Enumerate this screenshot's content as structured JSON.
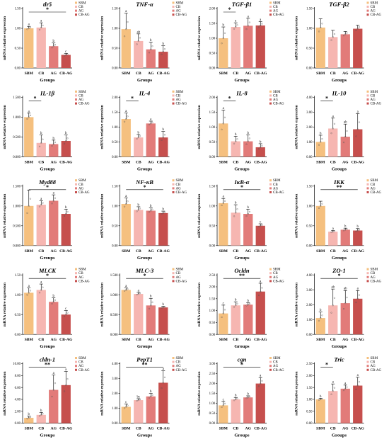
{
  "chart_data": [
    {
      "type": "bar",
      "title": "tlr5",
      "ylabel": "mRNA relative expression",
      "xlabel": "Groups",
      "categories": [
        "SBM",
        "CB",
        "AG",
        "CB-AG"
      ],
      "series": [
        {
          "values": [
            1.0,
            1.02,
            0.55,
            0.33
          ],
          "errors": [
            0.05,
            0.12,
            0.08,
            0.04
          ],
          "letters": [
            "a",
            "a",
            "b",
            "c"
          ]
        }
      ],
      "ylim": [
        0,
        1.5
      ],
      "yticks": [
        "0.00",
        "0.50",
        "1.00",
        "1.50"
      ],
      "legend": [
        "SBM",
        "CB",
        "AG",
        "CB-AG"
      ],
      "sig": {
        "label": "*",
        "from": 0,
        "to": 3
      },
      "grid": false
    },
    {
      "type": "bar",
      "title": "TNF-α",
      "ylabel": "mRNA relative expression",
      "xlabel": "Groups",
      "categories": [
        "SBM",
        "CB",
        "AG",
        "CB-AG"
      ],
      "series": [
        {
          "values": [
            0.98,
            0.68,
            0.47,
            0.41
          ],
          "errors": [
            0.4,
            0.18,
            0.18,
            0.15
          ],
          "letters": [
            "a",
            "ab",
            "b",
            "b"
          ]
        }
      ],
      "ylim": [
        0,
        1.5
      ],
      "yticks": [
        "0.00",
        "0.50",
        "1.00",
        "1.50"
      ],
      "legend": [
        "SBM",
        "CB",
        "AG",
        "CB-AG"
      ],
      "sig": null,
      "grid": false
    },
    {
      "type": "bar",
      "title": "TGF-β1",
      "ylabel": "mRNA relative expression",
      "xlabel": "Groups",
      "categories": [
        "SBM",
        "CB",
        "AG",
        "CB-AG"
      ],
      "series": [
        {
          "values": [
            1.0,
            1.38,
            1.42,
            1.43
          ],
          "errors": [
            0.38,
            0.14,
            0.25,
            0.13
          ],
          "letters": [
            "b",
            "a",
            "a",
            "a"
          ]
        }
      ],
      "ylim": [
        0,
        2.0
      ],
      "yticks": [
        "0.00",
        "0.50",
        "1.00",
        "1.50",
        "2.00"
      ],
      "legend": [
        "SBM",
        "CB",
        "AG",
        "CB-AG"
      ],
      "sig": {
        "label": "*",
        "from": 0,
        "to": 1
      },
      "grid": false
    },
    {
      "type": "bar",
      "title": "TGF-β2",
      "ylabel": "mRNA relative expression",
      "xlabel": "Groups",
      "categories": [
        "SBM",
        "CB",
        "AG",
        "CB-AG"
      ],
      "series": [
        {
          "values": [
            1.02,
            0.78,
            0.85,
            0.99
          ],
          "errors": [
            0.22,
            0.17,
            0.07,
            0.09
          ],
          "letters": [
            "",
            "",
            "",
            ""
          ]
        }
      ],
      "ylim": [
        0,
        1.5
      ],
      "yticks": [
        "0.00",
        "0.50",
        "1.00",
        "1.50"
      ],
      "legend": [
        "SBM",
        "CB",
        "AG",
        "CB-AG"
      ],
      "sig": null,
      "grid": false
    },
    {
      "type": "bar",
      "title": "IL-1β",
      "ylabel": "mRNA relative expression",
      "xlabel": "Groups",
      "categories": [
        "SBM",
        "CB",
        "AG",
        "CB-AG"
      ],
      "series": [
        {
          "values": [
            1.0,
            0.35,
            0.32,
            0.4
          ],
          "errors": [
            0.1,
            0.2,
            0.1,
            0.15
          ],
          "letters": [
            "a",
            "b",
            "b",
            "b"
          ]
        }
      ],
      "ylim": [
        0,
        1.5
      ],
      "yticks": [
        "0.000",
        "0.500",
        "1.000",
        "1.500"
      ],
      "legend": [
        "SBM",
        "CB",
        "AG",
        "CB-AG"
      ],
      "sig": {
        "label": "*",
        "from": 0,
        "to": 1
      },
      "grid": false
    },
    {
      "type": "bar",
      "title": "IL-4",
      "ylabel": "mRNA relative expression",
      "xlabel": "Groups",
      "categories": [
        "SBM",
        "CB",
        "AG",
        "CB-AG"
      ],
      "series": [
        {
          "values": [
            1.27,
            0.65,
            1.12,
            0.65
          ],
          "errors": [
            0.2,
            0.1,
            0.08,
            0.2
          ],
          "letters": [
            "a",
            "b",
            "a",
            "b"
          ]
        }
      ],
      "ylim": [
        0,
        2.0
      ],
      "yticks": [
        "0.00",
        "0.50",
        "1.00",
        "1.50",
        "2.00"
      ],
      "legend": [
        "SBM",
        "CB",
        "AG",
        "CB-AG"
      ],
      "sig": {
        "label": "*",
        "from": 0,
        "to": 1
      },
      "grid": false
    },
    {
      "type": "bar",
      "title": "IL-8",
      "ylabel": "mRNA relative expression",
      "xlabel": "Groups",
      "categories": [
        "SBM",
        "CB",
        "AG",
        "CB-AG"
      ],
      "series": [
        {
          "values": [
            1.12,
            0.52,
            0.52,
            0.32
          ],
          "errors": [
            0.45,
            0.17,
            0.22,
            0.12
          ],
          "letters": [
            "a",
            "b",
            "b",
            "b"
          ]
        }
      ],
      "ylim": [
        0,
        2.0
      ],
      "yticks": [
        "0.00",
        "0.50",
        "1.00",
        "1.50",
        "2.00"
      ],
      "legend": [
        "SBM",
        "CB",
        "AG",
        "CB-AG"
      ],
      "sig": {
        "label": "*",
        "from": 0,
        "to": 1
      },
      "grid": false
    },
    {
      "type": "bar",
      "title": "IL-10",
      "ylabel": "mRNA relative expression",
      "xlabel": "Groups",
      "categories": [
        "SBM",
        "CB",
        "AG",
        "CB-AG"
      ],
      "series": [
        {
          "values": [
            1.0,
            1.9,
            1.35,
            1.85
          ],
          "errors": [
            0.45,
            0.7,
            0.85,
            1.05
          ],
          "letters": [
            "b",
            "a",
            "ab",
            "a"
          ]
        }
      ],
      "ylim": [
        0,
        4.0
      ],
      "yticks": [
        "0.00",
        "1.00",
        "2.00",
        "3.00",
        "4.00"
      ],
      "legend": [
        "SBM",
        "CB",
        "AG",
        "CB-AG"
      ],
      "sig": {
        "label": "*",
        "from": 0,
        "to": 1
      },
      "grid": false
    },
    {
      "type": "bar",
      "title": "Myd88",
      "ylabel": "mRNA relative expression",
      "xlabel": "Groups",
      "categories": [
        "SBM",
        "CB",
        "AG",
        "CB-AG"
      ],
      "series": [
        {
          "values": [
            1.0,
            1.03,
            1.13,
            0.8
          ],
          "errors": [
            0.4,
            0.1,
            0.15,
            0.12
          ],
          "letters": [
            "",
            "a",
            "a",
            "b"
          ]
        }
      ],
      "ylim": [
        0,
        1.5
      ],
      "yticks": [
        "0.000",
        "0.500",
        "1.000",
        "1.500"
      ],
      "legend": [
        "SBM",
        "CB",
        "AG",
        "CB-AG"
      ],
      "sig": {
        "label": "*",
        "from": 0,
        "to": 3
      },
      "grid": false
    },
    {
      "type": "bar",
      "title": "NF-κB",
      "ylabel": "mRNA relative expression",
      "xlabel": "Groups",
      "categories": [
        "SBM",
        "CB",
        "AG",
        "CB-AG"
      ],
      "series": [
        {
          "values": [
            1.05,
            0.9,
            0.88,
            0.82
          ],
          "errors": [
            0.15,
            0.08,
            0.07,
            0.05
          ],
          "letters": [
            "a",
            "b",
            "b",
            "b"
          ]
        }
      ],
      "ylim": [
        0,
        1.5
      ],
      "yticks": [
        "0.00",
        "0.50",
        "1.00",
        "1.50"
      ],
      "legend": [
        "SBM",
        "CB",
        "AG",
        "CB-AG"
      ],
      "sig": {
        "label": "*",
        "from": 0,
        "to": 3
      },
      "grid": false
    },
    {
      "type": "bar",
      "title": "IκB-α",
      "ylabel": "mRNA relative expression",
      "xlabel": "Groups",
      "categories": [
        "SBM",
        "CB",
        "AG",
        "CB-AG"
      ],
      "series": [
        {
          "values": [
            1.07,
            0.83,
            0.8,
            0.5
          ],
          "errors": [
            0.12,
            0.2,
            0.12,
            0.05
          ],
          "letters": [
            "a",
            "b",
            "b",
            "c"
          ]
        }
      ],
      "ylim": [
        0,
        1.5
      ],
      "yticks": [
        "0.00",
        "0.50",
        "1.00",
        "1.50"
      ],
      "legend": [
        "SBM",
        "CB",
        "AG",
        "CB-AG"
      ],
      "sig": {
        "label": "*",
        "from": 0,
        "to": 3
      },
      "grid": false
    },
    {
      "type": "bar",
      "title": "IKK",
      "ylabel": "mRNA relative expression",
      "xlabel": "Groups",
      "categories": [
        "SBM",
        "CB",
        "AG",
        "CB-AG"
      ],
      "series": [
        {
          "values": [
            1.0,
            0.35,
            0.4,
            0.38
          ],
          "errors": [
            0.12,
            0.03,
            0.04,
            0.05
          ],
          "letters": [
            "",
            "a",
            "b",
            "b"
          ]
        }
      ],
      "ylim": [
        0,
        1.5
      ],
      "yticks": [
        "0.00",
        "0.50",
        "1.00",
        "1.50"
      ],
      "legend": [
        "SBM",
        "CB",
        "AG",
        "CB-AG"
      ],
      "sig": {
        "label": "**",
        "from": 0,
        "to": 3
      },
      "grid": false
    },
    {
      "type": "bar",
      "title": "MLCK",
      "ylabel": "mRNA relative expression",
      "xlabel": "Groups",
      "categories": [
        "SBM",
        "CB",
        "AG",
        "CB-AG"
      ],
      "series": [
        {
          "values": [
            1.05,
            1.12,
            0.82,
            0.5
          ],
          "errors": [
            0.12,
            0.15,
            0.1,
            0.1
          ],
          "letters": [
            "a",
            "a",
            "b",
            "c"
          ]
        }
      ],
      "ylim": [
        0,
        1.5
      ],
      "yticks": [
        "0.00",
        "0.50",
        "1.00",
        "1.50"
      ],
      "legend": [
        "SBM",
        "CB",
        "AG",
        "CB-AG"
      ],
      "sig": {
        "label": "*",
        "from": 0,
        "to": 3
      },
      "grid": false
    },
    {
      "type": "bar",
      "title": "MLC-3",
      "ylabel": "mRNA relative expression",
      "xlabel": "Groups",
      "categories": [
        "SBM",
        "CB",
        "AG",
        "CB-AG"
      ],
      "series": [
        {
          "values": [
            1.12,
            1.02,
            0.73,
            0.68
          ],
          "errors": [
            0.05,
            0.04,
            0.18,
            0.03
          ],
          "letters": [
            "a",
            "a",
            "b",
            "b"
          ]
        }
      ],
      "ylim": [
        0,
        1.5
      ],
      "yticks": [
        "0.000",
        "0.500",
        "1.000",
        "1.500"
      ],
      "legend": [
        "SBM",
        "CB",
        "AG",
        "CB-AG"
      ],
      "sig": {
        "label": "*",
        "from": 0,
        "to": 3
      },
      "grid": false
    },
    {
      "type": "bar",
      "title": "Ocldn",
      "ylabel": "mRNA relative expression",
      "xlabel": "Groups",
      "categories": [
        "SBM",
        "CB",
        "AG",
        "CB-AG"
      ],
      "series": [
        {
          "values": [
            0.88,
            1.22,
            1.25,
            1.8
          ],
          "errors": [
            0.35,
            0.15,
            0.08,
            0.35
          ],
          "letters": [
            "c",
            "b",
            "b",
            "a"
          ]
        }
      ],
      "ylim": [
        0,
        2.5
      ],
      "yticks": [
        "0.00",
        "0.50",
        "1.00",
        "1.50",
        "2.00",
        "2.50"
      ],
      "legend": [
        "SBM",
        "CB",
        "AG",
        "CB-AG"
      ],
      "sig": {
        "label": "**",
        "from": 0,
        "to": 3
      },
      "grid": false
    },
    {
      "type": "bar",
      "title": "ZO-1",
      "ylabel": "mRNA relative expression",
      "xlabel": "Groups",
      "categories": [
        "SBM",
        "CB",
        "AG",
        "CB-AG"
      ],
      "series": [
        {
          "values": [
            1.1,
            1.95,
            2.1,
            2.4
          ],
          "errors": [
            0.4,
            1.1,
            0.85,
            0.55
          ],
          "letters": [
            "b",
            "ab",
            "ab",
            "a"
          ]
        }
      ],
      "ylim": [
        0,
        4.0
      ],
      "yticks": [
        "0.00",
        "1.00",
        "2.00",
        "3.00",
        "4.00"
      ],
      "legend": [
        "SBM",
        "CB",
        "AG",
        "CB-AG"
      ],
      "sig": {
        "label": "*",
        "from": 0,
        "to": 3
      },
      "grid": false
    },
    {
      "type": "bar",
      "title": "cldn-1",
      "ylabel": "mRNA relative expression",
      "xlabel": "Groups",
      "categories": [
        "SBM",
        "CB",
        "AG",
        "CB-AG"
      ],
      "series": [
        {
          "values": [
            0.9,
            1.4,
            5.6,
            6.4
          ],
          "errors": [
            0.3,
            0.4,
            2.5,
            2.3
          ],
          "letters": [
            "b",
            "b",
            "a",
            "a"
          ]
        }
      ],
      "ylim": [
        0,
        10
      ],
      "yticks": [
        "0.00",
        "2.00",
        "4.00",
        "6.00",
        "8.00",
        "10.00"
      ],
      "legend": [
        "SBM",
        "CB",
        "AG",
        "CB-AG"
      ],
      "sig": {
        "label": "**",
        "from": 0,
        "to": 3
      },
      "grid": false
    },
    {
      "type": "bar",
      "title": "PepT1",
      "ylabel": "mRNA relative expression",
      "xlabel": "Groups",
      "categories": [
        "SBM",
        "CB",
        "AG",
        "CB-AG"
      ],
      "series": [
        {
          "values": [
            1.1,
            1.55,
            1.8,
            2.72
          ],
          "errors": [
            0.2,
            0.1,
            0.2,
            0.8
          ],
          "letters": [
            "c",
            "bc",
            "b",
            "a"
          ]
        }
      ],
      "ylim": [
        0,
        4.0
      ],
      "yticks": [
        "0.00",
        "1.00",
        "2.00",
        "3.00",
        "4.00"
      ],
      "legend": [
        "SBM",
        "CB",
        "AG",
        "CB-AG"
      ],
      "sig": {
        "label": "**",
        "from": 0,
        "to": 3
      },
      "grid": false
    },
    {
      "type": "bar",
      "title": "cgn",
      "ylabel": "mRNA relative expression",
      "xlabel": "Groups",
      "categories": [
        "SBM",
        "CB",
        "AG",
        "CB-AG"
      ],
      "series": [
        {
          "values": [
            0.9,
            1.2,
            1.3,
            2.0
          ],
          "errors": [
            0.2,
            0.1,
            0.08,
            0.3
          ],
          "letters": [
            "c",
            "b",
            "b",
            "a"
          ]
        }
      ],
      "ylim": [
        0,
        3.0
      ],
      "yticks": [
        "0.00",
        "0.50",
        "1.00",
        "1.50",
        "2.00",
        "2.50",
        "3.00"
      ],
      "legend": [
        "SBM",
        "CB",
        "AG",
        "CB-AG"
      ],
      "sig": {
        "label": "*",
        "from": 0,
        "to": 3
      },
      "grid": false
    },
    {
      "type": "bar",
      "title": "Tric",
      "ylabel": "mRNA relative expression",
      "xlabel": "Groups",
      "categories": [
        "SBM",
        "CB",
        "AG",
        "CB-AG"
      ],
      "series": [
        {
          "values": [
            1.0,
            1.35,
            1.45,
            1.58
          ],
          "errors": [
            0.05,
            0.3,
            0.15,
            0.35
          ],
          "letters": [
            "b",
            "a",
            "a",
            "a"
          ]
        }
      ],
      "ylim": [
        0,
        2.5
      ],
      "yticks": [
        "0.00",
        "0.50",
        "1.00",
        "1.50",
        "2.00",
        "2.50"
      ],
      "legend": [
        "SBM",
        "CB",
        "AG",
        "CB-AG"
      ],
      "sig": {
        "label": "*",
        "from": 0,
        "to": 1
      },
      "grid": false
    }
  ],
  "colors": {
    "bars": [
      "#f5c07f",
      "#f6b6b1",
      "#e27b79",
      "#c64f4d"
    ],
    "axis": "#000000"
  }
}
